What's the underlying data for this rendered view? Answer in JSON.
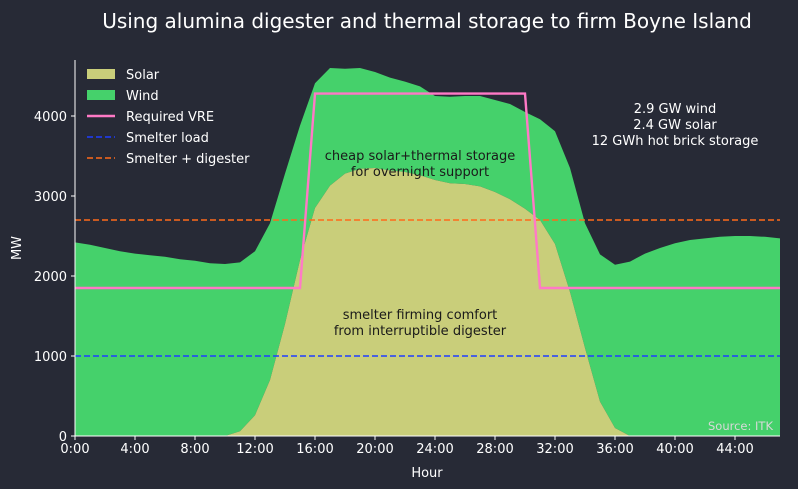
{
  "chart_data": {
    "type": "area",
    "title": "Using alumina digester and thermal storage to firm Boyne Island",
    "xlabel": "Hour",
    "ylabel": "MW",
    "xlim": [
      0,
      47
    ],
    "ylim": [
      0,
      4700
    ],
    "x_ticks": [
      0,
      4,
      8,
      12,
      16,
      20,
      24,
      28,
      32,
      36,
      40,
      44
    ],
    "x_tick_labels": [
      "0:00",
      "4:00",
      "8:00",
      "12:00",
      "16:00",
      "20:00",
      "24:00",
      "28:00",
      "32:00",
      "36:00",
      "40:00",
      "44:00"
    ],
    "y_ticks": [
      0,
      1000,
      2000,
      3000,
      4000
    ],
    "y_tick_labels": [
      "0",
      "1000",
      "2000",
      "3000",
      "4000"
    ],
    "grid": false,
    "legend_position": "top-left",
    "x": [
      0,
      1,
      2,
      3,
      4,
      5,
      6,
      7,
      8,
      9,
      10,
      11,
      12,
      13,
      14,
      15,
      16,
      17,
      18,
      19,
      20,
      21,
      22,
      23,
      24,
      25,
      26,
      27,
      28,
      29,
      30,
      31,
      32,
      33,
      34,
      35,
      36,
      37,
      38,
      39,
      40,
      41,
      42,
      43,
      44,
      45,
      46,
      47
    ],
    "series": [
      {
        "name": "Solar",
        "kind": "stacked-area",
        "color": "#c9ce7a",
        "values": [
          0,
          0,
          0,
          0,
          0,
          0,
          0,
          0,
          0,
          0,
          0,
          60,
          260,
          700,
          1400,
          2200,
          2850,
          3130,
          3280,
          3340,
          3350,
          3320,
          3300,
          3260,
          3200,
          3160,
          3150,
          3120,
          3050,
          2960,
          2840,
          2700,
          2400,
          1800,
          1100,
          430,
          100,
          0,
          0,
          0,
          0,
          0,
          0,
          0,
          0,
          0,
          0,
          0
        ]
      },
      {
        "name": "Wind",
        "kind": "stacked-area",
        "color": "#45d16b",
        "values": [
          2420,
          2390,
          2350,
          2310,
          2280,
          2260,
          2240,
          2210,
          2190,
          2160,
          2150,
          2110,
          2050,
          1960,
          1880,
          1680,
          1560,
          1470,
          1310,
          1260,
          1200,
          1160,
          1130,
          1110,
          1050,
          1080,
          1100,
          1130,
          1150,
          1190,
          1210,
          1260,
          1410,
          1550,
          1560,
          1840,
          2040,
          2180,
          2280,
          2350,
          2410,
          2450,
          2470,
          2490,
          2500,
          2500,
          2490,
          2470
        ]
      },
      {
        "name": "Required VRE",
        "kind": "line",
        "color": "#ff79c6",
        "points": [
          [
            0,
            1850
          ],
          [
            15,
            1850
          ],
          [
            16,
            4280
          ],
          [
            30,
            4280
          ],
          [
            31,
            1850
          ],
          [
            47,
            1850
          ]
        ]
      },
      {
        "name": "Smelter load",
        "kind": "hline",
        "color": "#1f3dff",
        "value": 1000
      },
      {
        "name": "Smelter + digester",
        "kind": "hline",
        "color": "#ff6a1a",
        "value": 2700
      }
    ],
    "annotations": [
      {
        "id": "thermal",
        "lines": [
          "cheap solar+thermal storage",
          "for overnight support"
        ],
        "x": 23,
        "y": 3450
      },
      {
        "id": "digester",
        "lines": [
          "smelter firming comfort",
          "from interruptible digester"
        ],
        "x": 23,
        "y": 1460
      },
      {
        "id": "capacity",
        "lines": [
          "2.9 GW wind",
          "2.4 GW solar",
          "12 GWh hot brick storage"
        ],
        "x": 40,
        "y": 4040
      }
    ],
    "source": "Source: ITK"
  },
  "colors": {
    "background": "#272a36",
    "text": "#ffffff"
  }
}
